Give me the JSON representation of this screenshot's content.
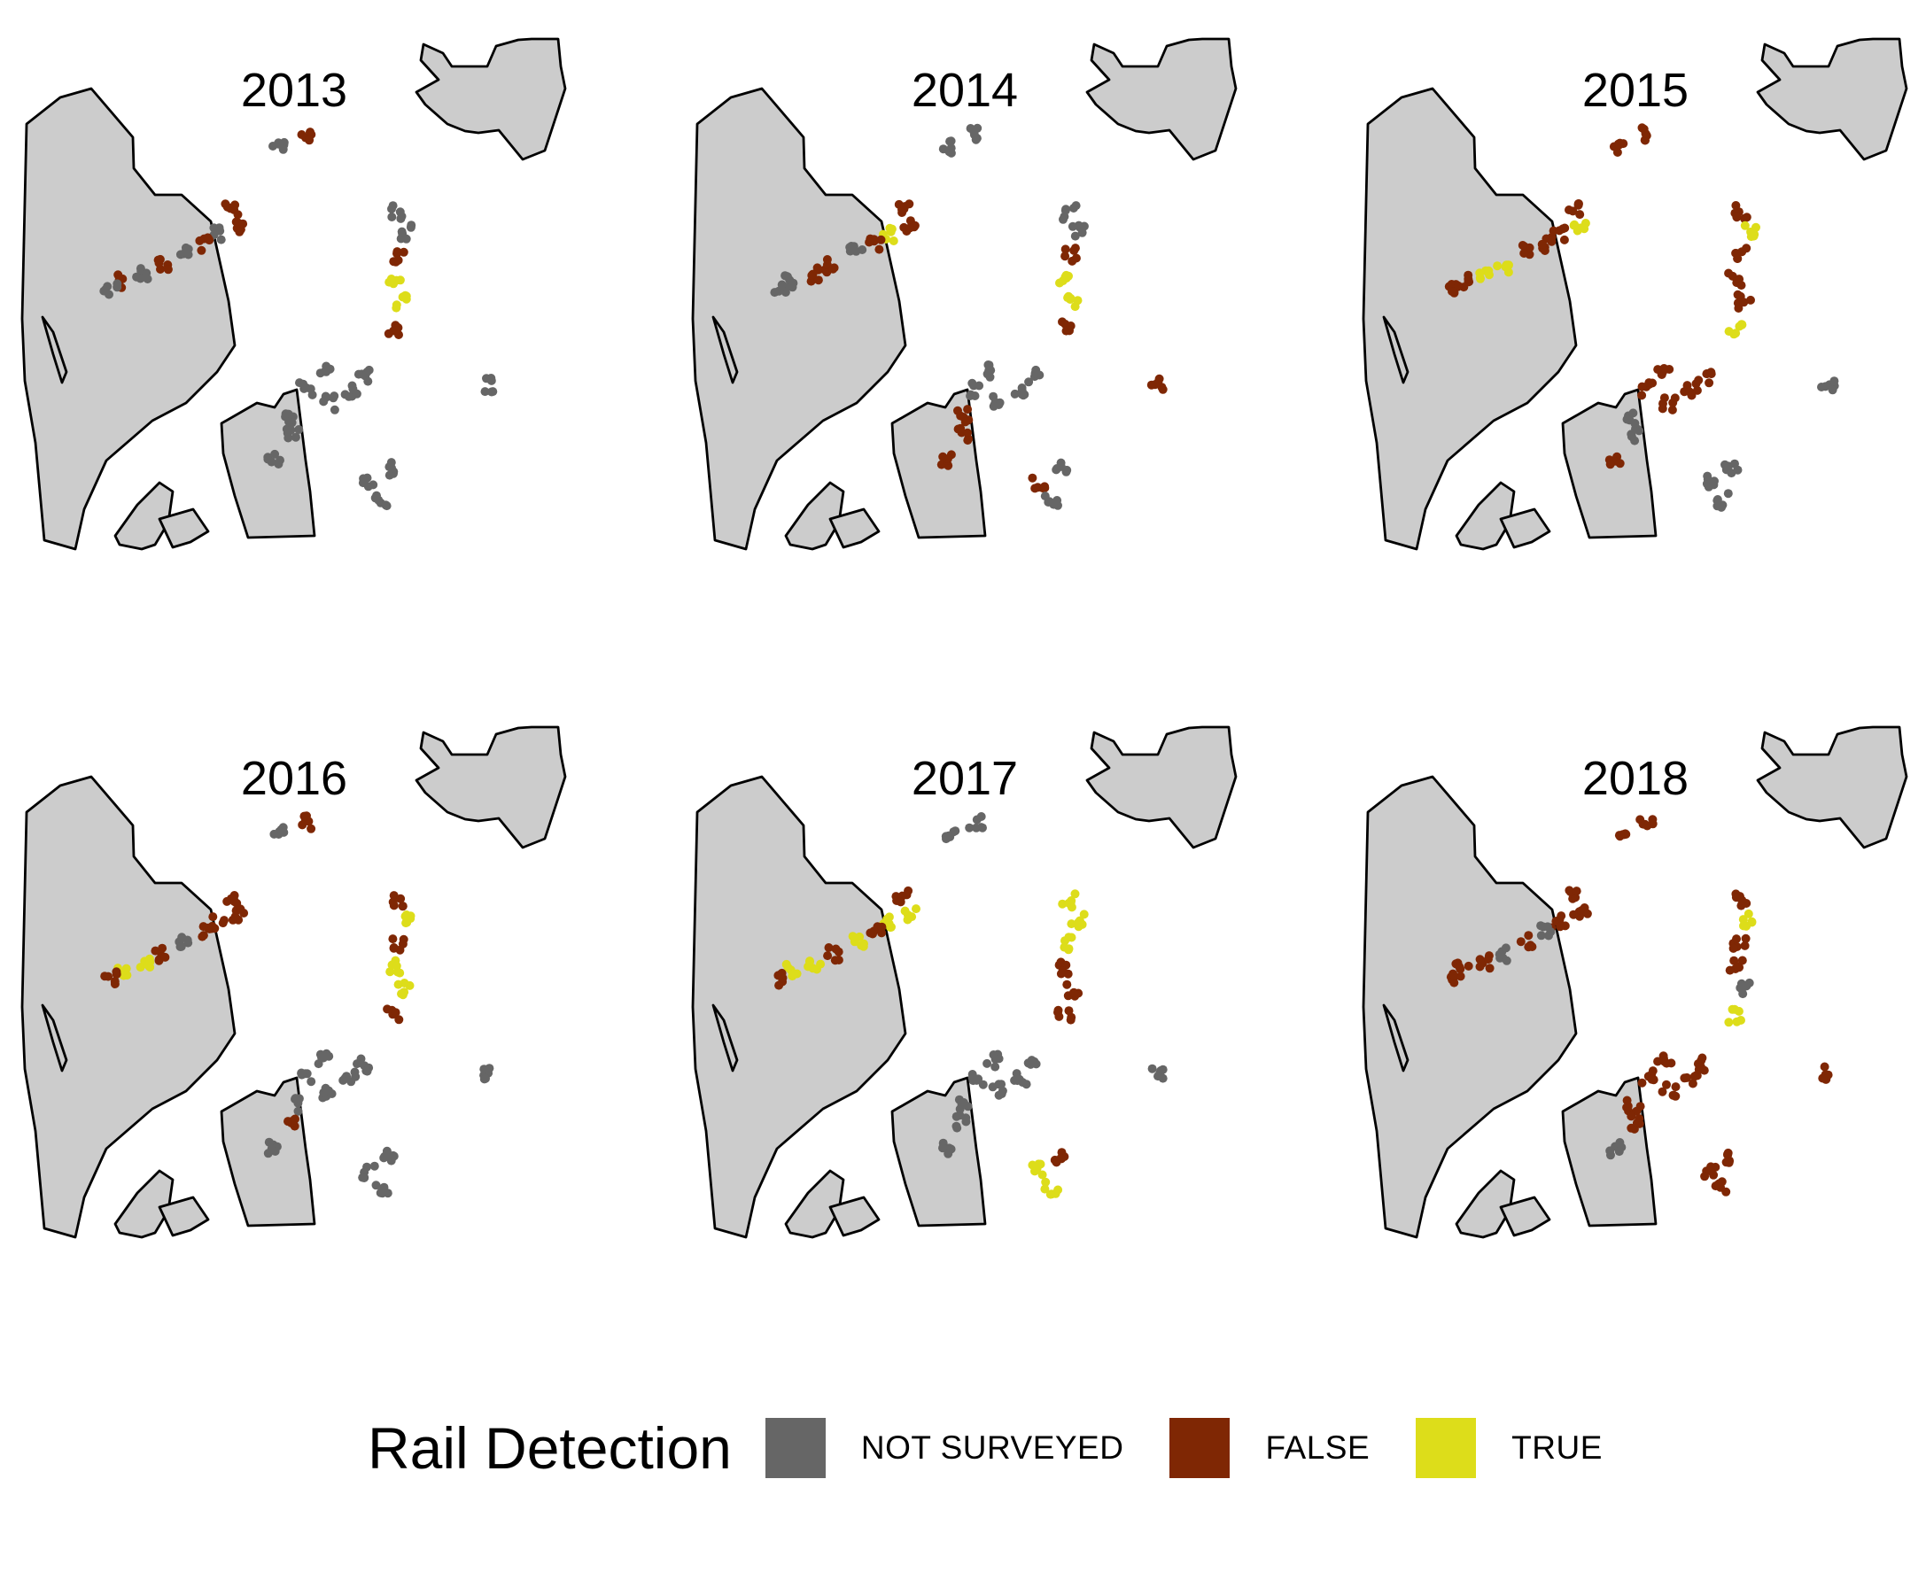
{
  "panels": [
    {
      "title": "2013"
    },
    {
      "title": "2014"
    },
    {
      "title": "2015"
    },
    {
      "title": "2016"
    },
    {
      "title": "2017"
    },
    {
      "title": "2018"
    }
  ],
  "legend": {
    "title": "Rail Detection",
    "items": [
      {
        "label": "NOT SURVEYED",
        "color": "#666666"
      },
      {
        "label": "FALSE",
        "color": "#7f2704"
      },
      {
        "label": "TRUE",
        "color": "#dddd1a"
      }
    ]
  }
}
